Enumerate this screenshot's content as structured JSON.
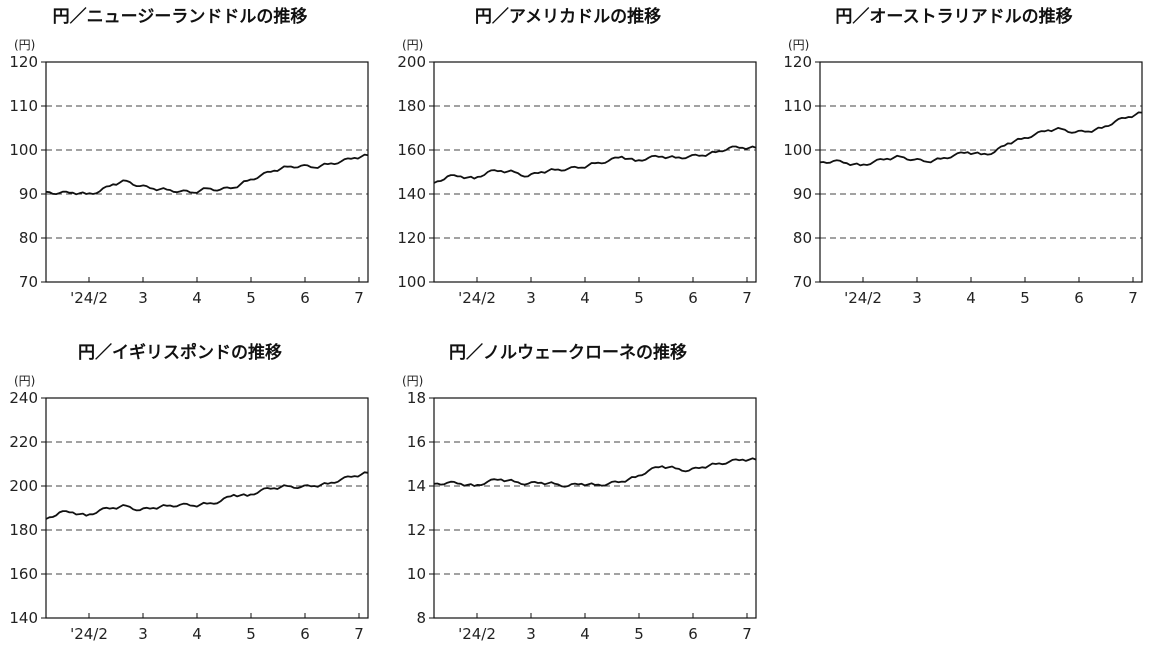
{
  "chart_data": [
    {
      "type": "line",
      "title": "円／ニュージーランドドルの推移",
      "unit": "(円)",
      "ylim": [
        70,
        120
      ],
      "yticks": [
        "70",
        "80",
        "90",
        "100",
        "110",
        "120"
      ],
      "xticks": [
        "'24/2",
        "3",
        "4",
        "5",
        "6",
        "7"
      ],
      "grid": "dashed-horizontal",
      "x": [
        "1/15",
        "1/22",
        "2/1",
        "2/8",
        "2/15",
        "2/22",
        "3/1",
        "3/8",
        "3/15",
        "3/22",
        "4/1",
        "4/8",
        "4/15",
        "4/22",
        "5/1",
        "5/8",
        "5/15",
        "5/22",
        "6/1",
        "6/8",
        "6/15",
        "6/22",
        "7/1",
        "7/8",
        "7/15"
      ],
      "values": [
        90.5,
        90.2,
        90.3,
        90.0,
        90.6,
        92.2,
        93.0,
        91.8,
        91.2,
        91.0,
        90.6,
        90.3,
        91.3,
        91.0,
        91.4,
        93.0,
        94.2,
        95.3,
        96.2,
        96.4,
        96.0,
        96.8,
        97.4,
        98.2,
        98.8
      ]
    },
    {
      "type": "line",
      "title": "円／アメリカドルの推移",
      "unit": "(円)",
      "ylim": [
        100,
        200
      ],
      "yticks": [
        "100",
        "120",
        "140",
        "160",
        "180",
        "200"
      ],
      "xticks": [
        "'24/2",
        "3",
        "4",
        "5",
        "6",
        "7"
      ],
      "grid": "dashed-horizontal",
      "x": [
        "1/15",
        "1/22",
        "2/1",
        "2/8",
        "2/15",
        "2/22",
        "3/1",
        "3/8",
        "3/15",
        "3/22",
        "4/1",
        "4/8",
        "4/15",
        "4/22",
        "5/1",
        "5/8",
        "5/15",
        "5/22",
        "6/1",
        "6/8",
        "6/15",
        "6/22",
        "7/1",
        "7/8",
        "7/15"
      ],
      "values": [
        145,
        148,
        148,
        147,
        150,
        150.5,
        150,
        148,
        150,
        151,
        151.5,
        152,
        154,
        155,
        157,
        155,
        156.5,
        157,
        156.5,
        157,
        157.5,
        159,
        161,
        161,
        161
      ]
    },
    {
      "type": "line",
      "title": "円／オーストラリアドルの推移",
      "unit": "(円)",
      "ylim": [
        70,
        120
      ],
      "yticks": [
        "70",
        "80",
        "90",
        "100",
        "110",
        "120"
      ],
      "xticks": [
        "'24/2",
        "3",
        "4",
        "5",
        "6",
        "7"
      ],
      "grid": "dashed-horizontal",
      "x": [
        "1/15",
        "1/22",
        "2/1",
        "2/8",
        "2/15",
        "2/22",
        "3/1",
        "3/8",
        "3/15",
        "3/22",
        "4/1",
        "4/8",
        "4/15",
        "4/22",
        "5/1",
        "5/8",
        "5/15",
        "5/22",
        "6/1",
        "6/8",
        "6/15",
        "6/22",
        "7/1",
        "7/8",
        "7/15"
      ],
      "values": [
        97.2,
        97.5,
        97.0,
        96.5,
        97.3,
        98.0,
        98.5,
        97.8,
        97.3,
        98.0,
        98.8,
        99.5,
        99.0,
        99.5,
        101.5,
        102.5,
        103.5,
        104.5,
        104.8,
        104.0,
        104.2,
        105.0,
        106.5,
        107.5,
        108.5
      ]
    },
    {
      "type": "line",
      "title": "円／イギリスポンドの推移",
      "unit": "(円)",
      "ylim": [
        140,
        240
      ],
      "yticks": [
        "140",
        "160",
        "180",
        "200",
        "220",
        "240"
      ],
      "xticks": [
        "'24/2",
        "3",
        "4",
        "5",
        "6",
        "7"
      ],
      "grid": "dashed-horizontal",
      "x": [
        "1/15",
        "1/22",
        "2/1",
        "2/8",
        "2/15",
        "2/22",
        "3/1",
        "3/8",
        "3/15",
        "3/22",
        "4/1",
        "4/8",
        "4/15",
        "4/22",
        "5/1",
        "5/8",
        "5/15",
        "5/22",
        "6/1",
        "6/8",
        "6/15",
        "6/22",
        "7/1",
        "7/8",
        "7/15"
      ],
      "values": [
        185,
        188,
        188,
        186.5,
        189,
        190,
        191,
        189,
        190,
        191,
        191.5,
        191,
        192,
        193,
        196,
        195.5,
        198,
        199,
        200,
        199.5,
        200,
        201,
        203,
        204.5,
        206
      ]
    },
    {
      "type": "line",
      "title": "円／ノルウェークローネの推移",
      "unit": "(円)",
      "ylim": [
        8,
        18
      ],
      "yticks": [
        "8",
        "10",
        "12",
        "14",
        "16",
        "18"
      ],
      "xticks": [
        "'24/2",
        "3",
        "4",
        "5",
        "6",
        "7"
      ],
      "grid": "dashed-horizontal",
      "x": [
        "1/15",
        "1/22",
        "2/1",
        "2/8",
        "2/15",
        "2/22",
        "3/1",
        "3/8",
        "3/15",
        "3/22",
        "4/1",
        "4/8",
        "4/15",
        "4/22",
        "5/1",
        "5/8",
        "5/15",
        "5/22",
        "6/1",
        "6/8",
        "6/15",
        "6/22",
        "7/1",
        "7/8",
        "7/15"
      ],
      "values": [
        14.1,
        14.15,
        14.1,
        14.0,
        14.2,
        14.3,
        14.2,
        14.1,
        14.15,
        14.1,
        14.0,
        14.1,
        14.05,
        14.1,
        14.2,
        14.4,
        14.7,
        14.9,
        14.8,
        14.7,
        14.85,
        15.0,
        15.1,
        15.2,
        15.2
      ]
    }
  ]
}
